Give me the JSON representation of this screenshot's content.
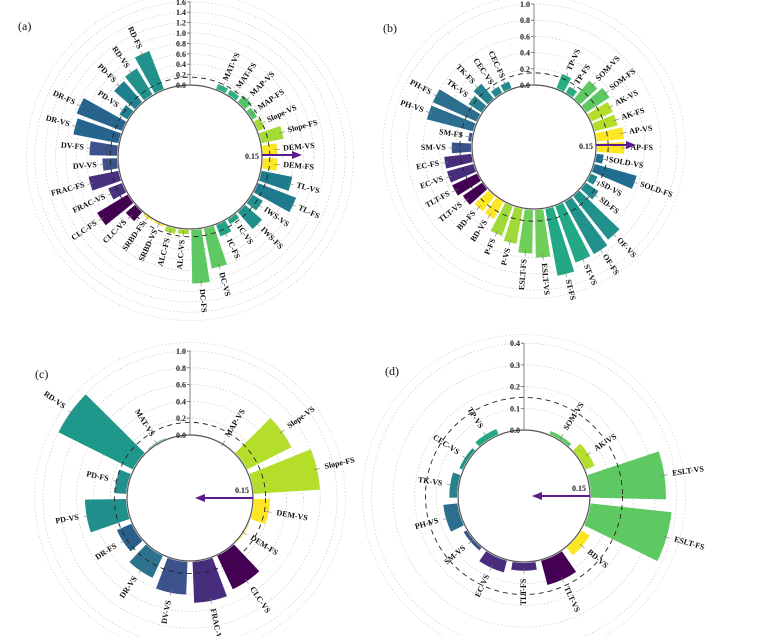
{
  "chart_data": [
    {
      "type": "bar",
      "layout": "polar",
      "panel_label": "(a)",
      "yticks": [
        "0.0",
        "0.2",
        "0.4",
        "0.6",
        "0.8",
        "1.0",
        "1.2",
        "1.4",
        "1.6"
      ],
      "ylim": [
        0,
        1.6
      ],
      "threshold": 0.15,
      "threshold_label": "0.15",
      "arrow_direction": "outward",
      "categories": [
        "MAT-VS",
        "MAT-FS",
        "MAP-VS",
        "MAP-FS",
        "Slope-VS",
        "Slope-FS",
        "DEM-VS",
        "DEM-FS",
        "TL-VS",
        "TL-FS",
        "IWS-VS",
        "IWS-FS",
        "IC-VS",
        "IC-FS",
        "DC-VS",
        "DC-FS",
        "ALC-VS",
        "ALC-FS",
        "SRBD-VS",
        "SRBD-FS",
        "CLC-VS",
        "CLC-FS",
        "FRAC-VS",
        "FRAC-FS",
        "DV-VS",
        "DV-FS",
        "DR-VS",
        "DR-FS",
        "PD-VS",
        "PD-FS",
        "RD-VS",
        "RD-FS"
      ],
      "values": [
        0.12,
        0.12,
        0.18,
        0.12,
        0.15,
        0.45,
        0.3,
        0.3,
        0.62,
        0.8,
        0.25,
        0.45,
        0.12,
        0.25,
        0.8,
        1.05,
        0.1,
        0.12,
        0.05,
        0.05,
        0.25,
        0.7,
        0.3,
        0.6,
        0.3,
        0.55,
        0.9,
        0.95,
        0.2,
        0.55,
        0.6,
        0.8
      ],
      "colors": [
        "#2db27d",
        "#2db27d",
        "#52c569",
        "#52c569",
        "#a5db36",
        "#a5db36",
        "#fde725",
        "#fde725",
        "#1e7a8c",
        "#1e7a8c",
        "#21908d",
        "#21908d",
        "#20a386",
        "#20a386",
        "#5ec962",
        "#5ec962",
        "#a5db36",
        "#a5db36",
        "#fde725",
        "#fde725",
        "#440154",
        "#440154",
        "#46327e",
        "#46327e",
        "#3b528b",
        "#3b528b",
        "#26648e",
        "#26648e",
        "#1f7f8e",
        "#1f7f8e",
        "#21918c",
        "#21918c"
      ]
    },
    {
      "type": "bar",
      "layout": "polar",
      "panel_label": "(b)",
      "yticks": [
        "0.0",
        "0.2",
        "0.4",
        "0.6",
        "0.8",
        "1.0"
      ],
      "ylim": [
        0,
        1.0
      ],
      "threshold": 0.15,
      "threshold_label": "0.15",
      "arrow_direction": "outward",
      "categories": [
        "TP-VS",
        "TP-FS",
        "SOM-VS",
        "SOM-FS",
        "AK-VS",
        "AK-FS",
        "AP-VS",
        "AP-FS",
        "SOLD-VS",
        "SOLD-FS",
        "SD-VS",
        "SD-FS",
        "OF-VS",
        "OF-FS",
        "ST-VS",
        "ST-FS",
        "ESLT-VS",
        "ESLT-FS",
        "P-VS",
        "P-FS",
        "BD-VS",
        "BD-FS",
        "TLT-VS",
        "TLT-FS",
        "EC-VS",
        "EC-FS",
        "SM-VS",
        "SM-FS",
        "PH-VS",
        "PH-FS",
        "TK-VS",
        "TK-FS",
        "CEC-VS",
        "CEC-FS"
      ],
      "values": [
        0.2,
        0.1,
        0.3,
        0.35,
        0.3,
        0.3,
        0.35,
        0.35,
        0.1,
        0.55,
        0.1,
        0.2,
        0.7,
        0.75,
        0.75,
        0.85,
        0.6,
        0.55,
        0.45,
        0.4,
        0.25,
        0.25,
        0.3,
        0.35,
        0.35,
        0.35,
        0.25,
        0.05,
        0.6,
        0.6,
        0.2,
        0.25,
        0.1,
        0.1
      ],
      "colors": [
        "#29af7f",
        "#29af7f",
        "#5ec962",
        "#5ec962",
        "#b5de2b",
        "#b5de2b",
        "#fde725",
        "#fde725",
        "#1f6e8f",
        "#1f6e8f",
        "#1f8a8d",
        "#1f8a8d",
        "#21918c",
        "#21918c",
        "#22a884",
        "#22a884",
        "#6ece58",
        "#6ece58",
        "#a0da39",
        "#a0da39",
        "#fde725",
        "#fde725",
        "#440154",
        "#440154",
        "#472d7b",
        "#472d7b",
        "#3b528b",
        "#3b528b",
        "#2c6e8e",
        "#2c6e8e",
        "#26828e",
        "#26828e",
        "#23898e",
        "#23898e"
      ]
    },
    {
      "type": "bar",
      "layout": "polar",
      "panel_label": "(c)",
      "yticks": [
        "0.0",
        "0.2",
        "0.4",
        "0.6",
        "0.8",
        "1.0"
      ],
      "ylim": [
        0,
        1.0
      ],
      "threshold": 0.15,
      "threshold_label": "0.15",
      "arrow_direction": "inward",
      "categories": [
        "MAP-VS",
        "Slope-VS",
        "Slope-FS",
        "DEM-VS",
        "DEM-FS",
        "CLC-VS",
        "FRAC-VS",
        "DV-VS",
        "DR-VS",
        "DR-FS",
        "PD-VS",
        "PD-FS",
        "RD-VS",
        "MAT-VS"
      ],
      "values": [
        0.01,
        0.6,
        0.8,
        0.2,
        0.02,
        0.45,
        0.5,
        0.4,
        0.3,
        0.2,
        0.5,
        0.15,
        1.0,
        0.02
      ],
      "colors": [
        "#5ec962",
        "#b5de2b",
        "#b5de2b",
        "#fde725",
        "#fde725",
        "#440154",
        "#472d7b",
        "#3b528b",
        "#2c728e",
        "#2a5f8c",
        "#21908d",
        "#21908d",
        "#1f978b",
        "#2db27d"
      ]
    },
    {
      "type": "bar",
      "layout": "polar",
      "panel_label": "(d)",
      "yticks": [
        "0.0",
        "0.1",
        "0.2",
        "0.3",
        "0.4"
      ],
      "ylim": [
        0,
        0.4
      ],
      "threshold": 0.15,
      "threshold_label": "0.15",
      "arrow_direction": "inward",
      "categories": [
        "SOM-VS",
        "AK-VS",
        "ESLT-VS",
        "ESLT-FS",
        "BD-VS",
        "TLT-VS",
        "TLT-FS",
        "EC-VS",
        "SM-VS",
        "PH-VS",
        "TK-VS",
        "CEC-VS",
        "TP-VS"
      ],
      "values": [
        0.02,
        0.05,
        0.35,
        0.38,
        0.05,
        0.12,
        0.04,
        0.06,
        0.02,
        0.07,
        0.04,
        0.02,
        0.03
      ],
      "colors": [
        "#5ec962",
        "#b5de2b",
        "#5ec962",
        "#5ec962",
        "#fde725",
        "#440154",
        "#472d7b",
        "#472d7b",
        "#3b528b",
        "#2c6e8e",
        "#26828e",
        "#21918c",
        "#22a884"
      ]
    }
  ]
}
